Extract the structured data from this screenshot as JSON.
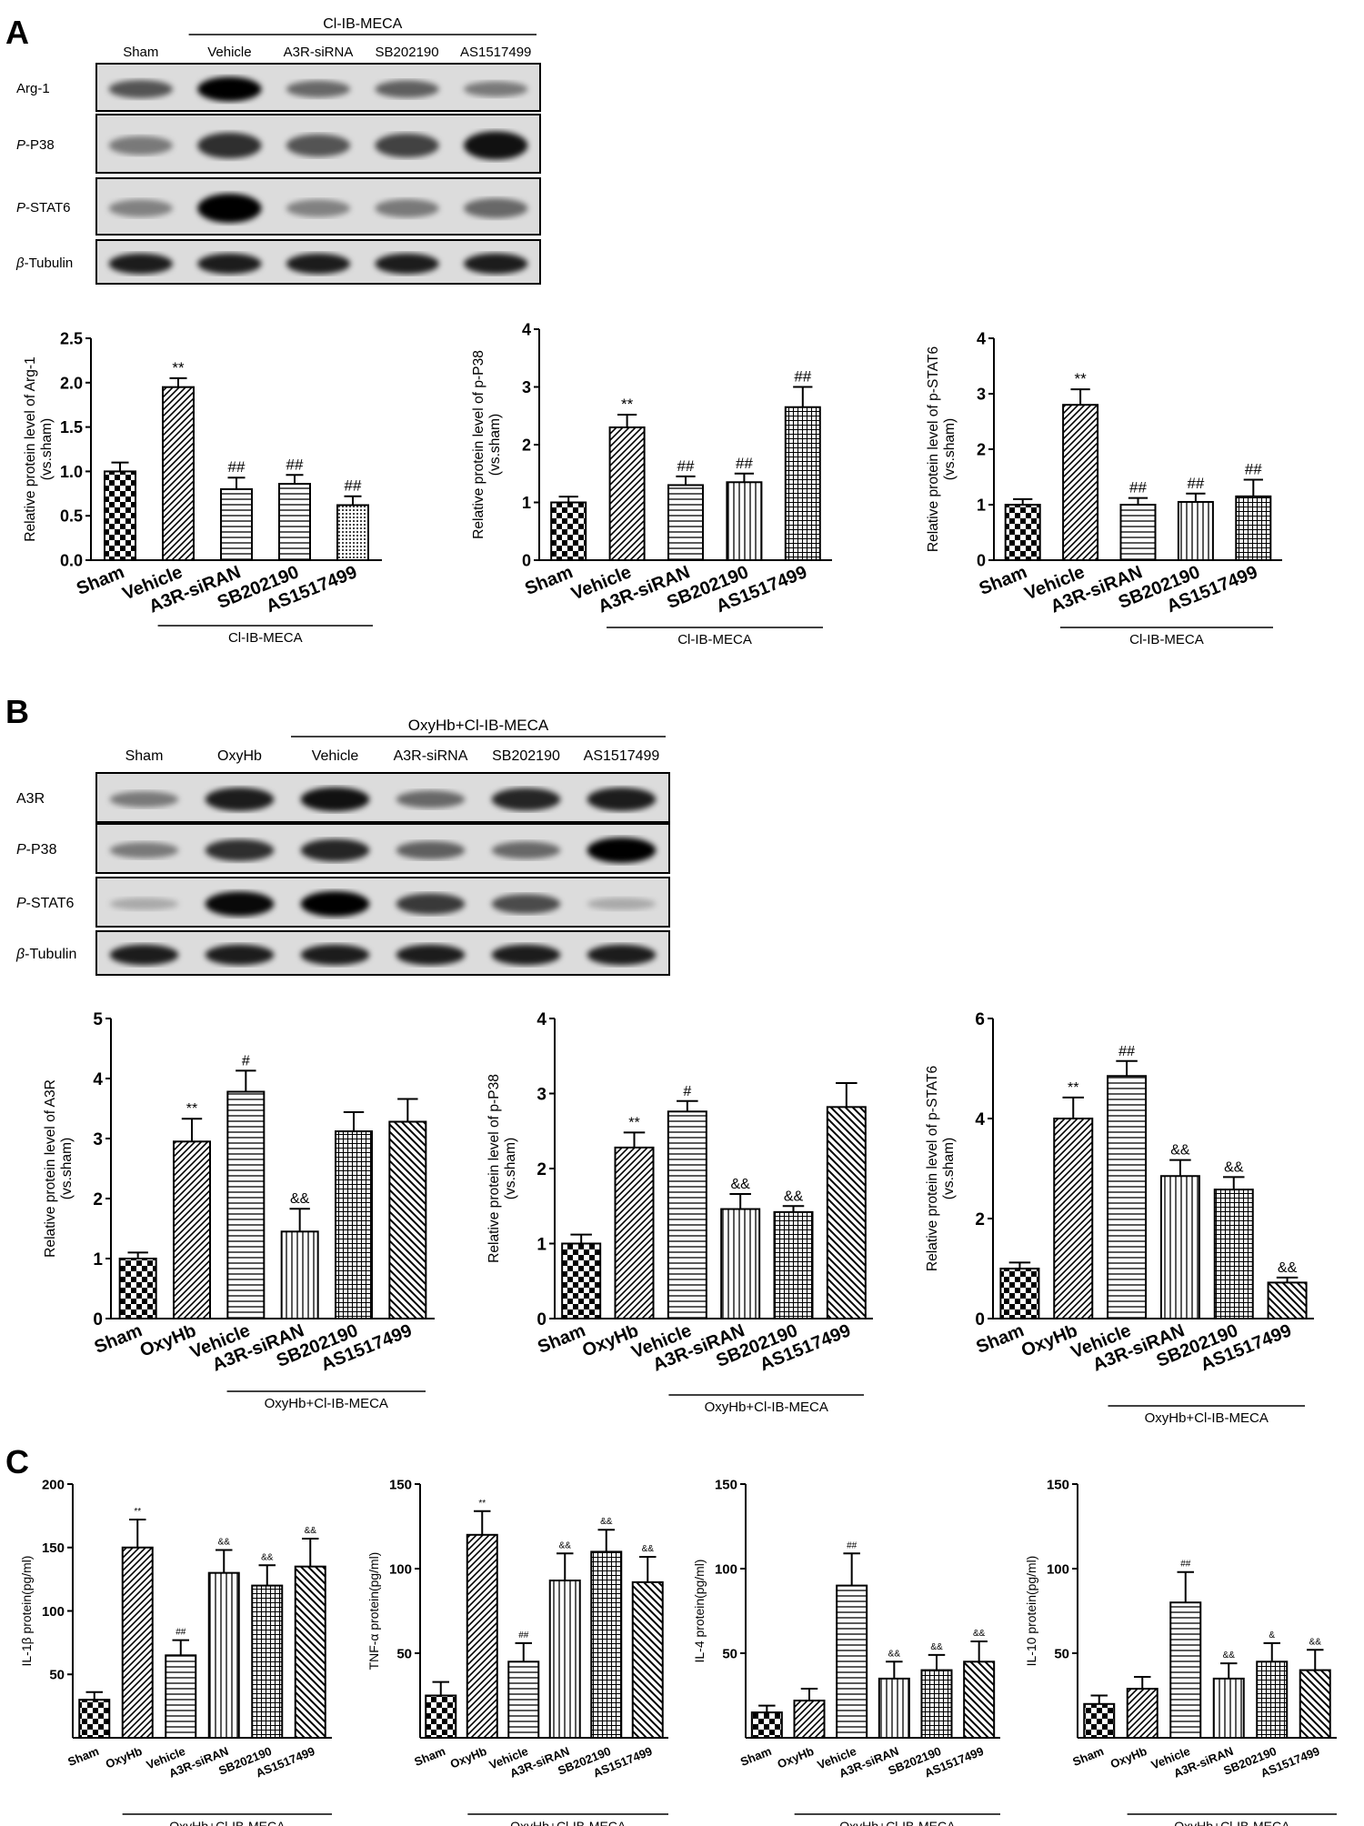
{
  "panels": {
    "A": {
      "letter": "A",
      "blot": {
        "group_label": "Cl-IB-MECA",
        "lanes": [
          "Sham",
          "Vehicle",
          "A3R-siRNA",
          "SB202190",
          "AS1517499"
        ],
        "group_start": 1,
        "rows": [
          {
            "label_prefix": "",
            "label_rest": "Arg-1",
            "intensity": [
              0.55,
              1.0,
              0.45,
              0.5,
              0.35
            ]
          },
          {
            "label_prefix": "P",
            "label_rest": "-P38",
            "intensity": [
              0.35,
              0.75,
              0.55,
              0.65,
              0.9
            ]
          },
          {
            "label_prefix": "P",
            "label_rest": "-STAT6",
            "intensity": [
              0.3,
              1.0,
              0.3,
              0.35,
              0.45
            ]
          },
          {
            "label_prefix": "β",
            "label_rest": "-Tubulin",
            "intensity": [
              0.85,
              0.85,
              0.85,
              0.85,
              0.85
            ]
          }
        ]
      }
    },
    "B": {
      "letter": "B",
      "blot": {
        "group_label": "OxyHb+Cl-IB-MECA",
        "lanes": [
          "Sham",
          "OxyHb",
          "Vehicle",
          "A3R-siRNA",
          "SB202190",
          "AS1517499"
        ],
        "group_start": 2,
        "rows": [
          {
            "label_prefix": "",
            "label_rest": "A3R",
            "intensity": [
              0.35,
              0.85,
              0.9,
              0.45,
              0.8,
              0.85
            ]
          },
          {
            "label_prefix": "P",
            "label_rest": "-P38",
            "intensity": [
              0.35,
              0.75,
              0.8,
              0.5,
              0.45,
              1.0
            ]
          },
          {
            "label_prefix": "P",
            "label_rest": "-STAT6",
            "intensity": [
              0.1,
              0.95,
              1.0,
              0.7,
              0.6,
              0.1
            ]
          },
          {
            "label_prefix": "β",
            "label_rest": "-Tubulin",
            "intensity": [
              0.85,
              0.85,
              0.85,
              0.85,
              0.85,
              0.85
            ]
          }
        ]
      }
    },
    "C": {
      "letter": "C"
    }
  },
  "chart_data": [
    {
      "id": "A1",
      "type": "bar",
      "ylabel_line1": "Relative protein level of Arg-1",
      "ylabel_line2": "(vs.sham)",
      "categories": [
        "Sham",
        "Vehicle",
        "A3R-siRAN",
        "SB202190",
        "AS1517499"
      ],
      "values": [
        1.0,
        1.95,
        0.8,
        0.86,
        0.62
      ],
      "errors": [
        0.1,
        0.1,
        0.13,
        0.1,
        0.1
      ],
      "annotations": [
        "",
        "**",
        "##",
        "##",
        "##"
      ],
      "ylim": [
        0,
        2.5
      ],
      "yticks": [
        "0.0",
        "0.5",
        "1.0",
        "1.5",
        "2.0",
        "2.5"
      ],
      "patterns": [
        "checker",
        "diag",
        "hlines",
        "hlines",
        "dots"
      ],
      "group_label": "Cl-IB-MECA",
      "group_start": 1
    },
    {
      "id": "A2",
      "type": "bar",
      "ylabel_line1": "Relative protein level of p-P38",
      "ylabel_line2": "(vs.sham)",
      "categories": [
        "Sham",
        "Vehicle",
        "A3R-siRAN",
        "SB202190",
        "AS1517499"
      ],
      "values": [
        1.0,
        2.3,
        1.3,
        1.35,
        2.65
      ],
      "errors": [
        0.1,
        0.22,
        0.15,
        0.15,
        0.35
      ],
      "annotations": [
        "",
        "**",
        "##",
        "##",
        "##"
      ],
      "ylim": [
        0,
        4
      ],
      "yticks": [
        "0",
        "1",
        "2",
        "3",
        "4"
      ],
      "patterns": [
        "checker",
        "diag",
        "hlines",
        "vlines",
        "grid"
      ],
      "group_label": "Cl-IB-MECA",
      "group_start": 1
    },
    {
      "id": "A3",
      "type": "bar",
      "ylabel_line1": "Relative protein level of p-STAT6",
      "ylabel_line2": "(vs.sham)",
      "categories": [
        "Sham",
        "Vehicle",
        "A3R-siRAN",
        "SB202190",
        "AS1517499"
      ],
      "values": [
        1.0,
        2.8,
        1.0,
        1.05,
        1.15
      ],
      "errors": [
        0.1,
        0.28,
        0.12,
        0.15,
        0.3
      ],
      "annotations": [
        "",
        "**",
        "##",
        "##",
        "##"
      ],
      "ylim": [
        0,
        4
      ],
      "yticks": [
        "0",
        "1",
        "2",
        "3",
        "4"
      ],
      "patterns": [
        "checker",
        "diag",
        "hlines",
        "vlines",
        "grid"
      ],
      "group_label": "Cl-IB-MECA",
      "group_start": 1
    },
    {
      "id": "B1",
      "type": "bar",
      "ylabel_line1": "Relative protein level of A3R",
      "ylabel_line2": "(vs.sham)",
      "categories": [
        "Sham",
        "OxyHb",
        "Vehicle",
        "A3R-siRAN",
        "SB202190",
        "AS1517499"
      ],
      "values": [
        1.0,
        2.95,
        3.78,
        1.45,
        3.12,
        3.28
      ],
      "errors": [
        0.1,
        0.38,
        0.35,
        0.38,
        0.32,
        0.38
      ],
      "annotations": [
        "",
        "**",
        "#",
        "&&",
        "",
        ""
      ],
      "ylim": [
        0,
        5
      ],
      "yticks": [
        "0",
        "1",
        "2",
        "3",
        "4",
        "5"
      ],
      "patterns": [
        "checker",
        "diag",
        "hlines",
        "vlines",
        "grid",
        "bdiag"
      ],
      "group_label": "OxyHb+Cl-IB-MECA",
      "group_start": 2
    },
    {
      "id": "B2",
      "type": "bar",
      "ylabel_line1": "Relative protein level of p-P38",
      "ylabel_line2": "(vs.sham)",
      "categories": [
        "Sham",
        "OxyHb",
        "Vehicle",
        "A3R-siRAN",
        "SB202190",
        "AS1517499"
      ],
      "values": [
        1.0,
        2.28,
        2.76,
        1.46,
        1.42,
        2.82
      ],
      "errors": [
        0.12,
        0.2,
        0.14,
        0.2,
        0.08,
        0.32
      ],
      "annotations": [
        "",
        "**",
        "#",
        "&&",
        "&&",
        ""
      ],
      "ylim": [
        0,
        4
      ],
      "yticks": [
        "0",
        "1",
        "2",
        "3",
        "4"
      ],
      "patterns": [
        "checker",
        "diag",
        "hlines",
        "vlines",
        "grid",
        "bdiag"
      ],
      "group_label": "OxyHb+Cl-IB-MECA",
      "group_start": 2
    },
    {
      "id": "B3",
      "type": "bar",
      "ylabel_line1": "Relative protein level of p-STAT6",
      "ylabel_line2": "(vs.sham)",
      "categories": [
        "Sham",
        "OxyHb",
        "Vehicle",
        "A3R-siRAN",
        "SB202190",
        "AS1517499"
      ],
      "values": [
        1.0,
        4.0,
        4.85,
        2.85,
        2.58,
        0.72
      ],
      "errors": [
        0.12,
        0.42,
        0.3,
        0.32,
        0.25,
        0.1
      ],
      "annotations": [
        "",
        "**",
        "##",
        "&&",
        "&&",
        "&&"
      ],
      "ylim": [
        0,
        6
      ],
      "yticks": [
        "0",
        "2",
        "4",
        "6"
      ],
      "patterns": [
        "checker",
        "diag",
        "hlines",
        "vlines",
        "grid",
        "bdiag"
      ],
      "group_label": "OxyHb+Cl-IB-MECA",
      "group_start": 2
    },
    {
      "id": "C1",
      "type": "bar",
      "ylabel_line1": "IL-1β protein(pg/ml)",
      "ylabel_line2": "",
      "categories": [
        "Sham",
        "OxyHb",
        "Vehicle",
        "A3R-siRAN",
        "SB202190",
        "AS1517499"
      ],
      "values": [
        30,
        150,
        65,
        130,
        120,
        135
      ],
      "errors": [
        6,
        22,
        12,
        18,
        16,
        22
      ],
      "annotations": [
        "",
        "**",
        "##",
        "&&",
        "&&",
        "&&"
      ],
      "ylim": [
        0,
        200
      ],
      "yticks": [
        "50",
        "100",
        "150",
        "200"
      ],
      "patterns": [
        "checker",
        "diag",
        "hlines",
        "vlines",
        "grid",
        "bdiag"
      ],
      "group_label": "OxyHb+Cl-IB-MECA",
      "group_start": 1
    },
    {
      "id": "C2",
      "type": "bar",
      "ylabel_line1": "TNF-α protein(pg/ml)",
      "ylabel_line2": "",
      "categories": [
        "Sham",
        "OxyHb",
        "Vehicle",
        "A3R-siRAN",
        "SB202190",
        "AS1517499"
      ],
      "values": [
        25,
        120,
        45,
        93,
        110,
        92
      ],
      "errors": [
        8,
        14,
        11,
        16,
        13,
        15
      ],
      "annotations": [
        "",
        "**",
        "##",
        "&&",
        "&&",
        "&&"
      ],
      "ylim": [
        0,
        150
      ],
      "yticks": [
        "50",
        "100",
        "150"
      ],
      "patterns": [
        "checker",
        "diag",
        "hlines",
        "vlines",
        "grid",
        "bdiag"
      ],
      "group_label": "OxyHb+Cl-IB-MECA",
      "group_start": 1
    },
    {
      "id": "C3",
      "type": "bar",
      "ylabel_line1": "IL-4 protein(pg/ml)",
      "ylabel_line2": "",
      "categories": [
        "Sham",
        "OxyHb",
        "Vehicle",
        "A3R-siRAN",
        "SB202190",
        "AS1517499"
      ],
      "values": [
        15,
        22,
        90,
        35,
        40,
        45
      ],
      "errors": [
        4,
        7,
        19,
        10,
        9,
        12
      ],
      "annotations": [
        "",
        "",
        "##",
        "&&",
        "&&",
        "&&"
      ],
      "ylim": [
        0,
        150
      ],
      "yticks": [
        "50",
        "100",
        "150"
      ],
      "patterns": [
        "checker",
        "diag",
        "hlines",
        "vlines",
        "grid",
        "bdiag"
      ],
      "group_label": "OxyHb+Cl-IB-MECA",
      "group_start": 1
    },
    {
      "id": "C4",
      "type": "bar",
      "ylabel_line1": "IL-10 protein(pg/ml)",
      "ylabel_line2": "",
      "categories": [
        "Sham",
        "OxyHb",
        "Vehicle",
        "A3R-siRAN",
        "SB202190",
        "AS1517499"
      ],
      "values": [
        20,
        29,
        80,
        35,
        45,
        40
      ],
      "errors": [
        5,
        7,
        18,
        9,
        11,
        12
      ],
      "annotations": [
        "",
        "",
        "##",
        "&&",
        "&",
        "&&"
      ],
      "ylim": [
        0,
        150
      ],
      "yticks": [
        "50",
        "100",
        "150"
      ],
      "patterns": [
        "checker",
        "diag",
        "hlines",
        "vlines",
        "grid",
        "bdiag"
      ],
      "group_label": "OxyHb+Cl-IB-MECA",
      "group_start": 1
    }
  ]
}
